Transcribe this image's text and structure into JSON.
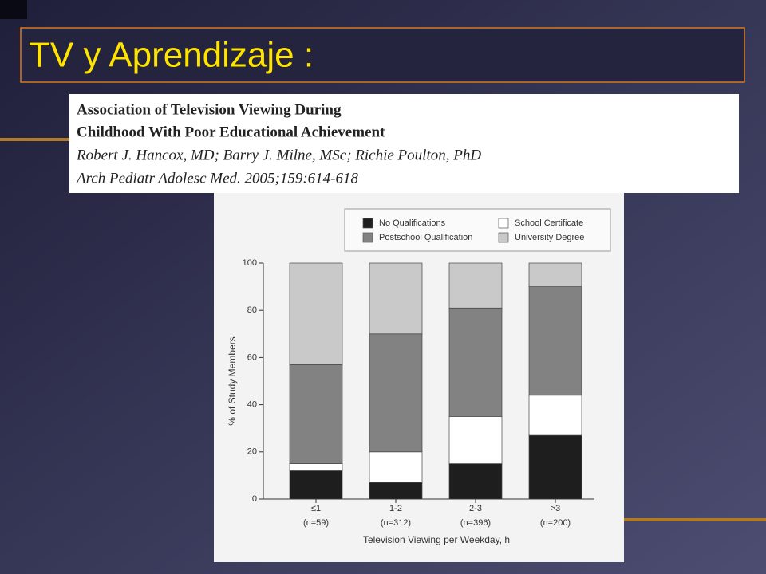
{
  "slide_title": "TV y Aprendizaje :",
  "citation": {
    "title_lines": [
      "Association of Television Viewing During",
      "Childhood With Poor Educational Achievement"
    ],
    "authors": "Robert J. Hancox, MD; Barry J. Milne, MSc; Richie Poulton, PhD",
    "journal": "Arch Pediatr Adolesc Med. 2005;159:614-618"
  },
  "chart_data": {
    "type": "stacked_bar",
    "x_label": "Television Viewing per Weekday, h",
    "y_label": "% of Study Members",
    "categories": [
      "≤1",
      "1-2",
      "2-3",
      ">3"
    ],
    "category_notes": [
      "(n=59)",
      "(n=312)",
      "(n=396)",
      "(n=200)"
    ],
    "series": [
      {
        "name": "No Qualifications",
        "color": "#1e1e1e",
        "values": [
          12,
          7,
          15,
          27
        ]
      },
      {
        "name": "School Certificate",
        "color": "#ffffff",
        "values": [
          3,
          13,
          20,
          17
        ]
      },
      {
        "name": "Postschool Qualification",
        "color": "#828282",
        "values": [
          42,
          50,
          46,
          46
        ]
      },
      {
        "name": "University Degree",
        "color": "#c9c9c9",
        "values": [
          43,
          30,
          19,
          10
        ]
      }
    ],
    "ylim": [
      0,
      100
    ],
    "yticks": [
      0,
      20,
      40,
      60,
      80,
      100
    ]
  }
}
